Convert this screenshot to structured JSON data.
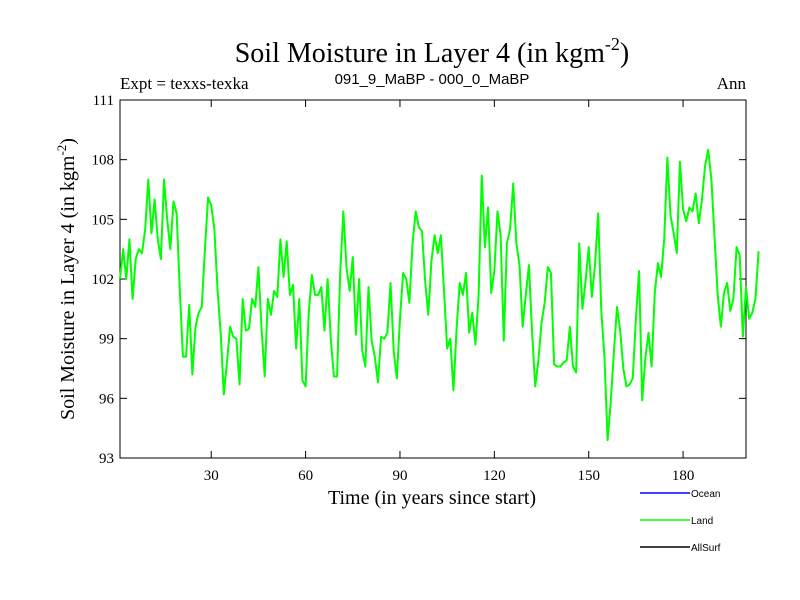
{
  "chart_data": {
    "type": "line",
    "title": "Soil Moisture in Layer 4 (in kgm",
    "title_superscript": "-2",
    "title_close": ")",
    "subtitle_left": "Expt = texxs-texka",
    "subtitle_center": "091_9_MaBP - 000_0_MaBP",
    "subtitle_right": "Ann",
    "xlabel": "Time (in years since start)",
    "ylabel": "Soil Moisture in Layer 4 (in kgm",
    "ylabel_superscript": "-2",
    "ylabel_close": ")",
    "xlim": [
      1,
      200
    ],
    "ylim": [
      93,
      111
    ],
    "xticks": [
      30,
      60,
      90,
      120,
      150,
      180
    ],
    "xtick_labels": [
      "30",
      "60",
      "90",
      "120",
      "150",
      "180"
    ],
    "yticks": [
      93,
      96,
      99,
      102,
      105,
      108,
      111
    ],
    "ytick_labels": [
      "93",
      "96",
      "99",
      "102",
      "105",
      "108",
      "111"
    ],
    "legend": [
      {
        "name": "Ocean",
        "color": "#0000ff"
      },
      {
        "name": "Land",
        "color": "#00ff00"
      },
      {
        "name": "AllSurf",
        "color": "#000000"
      }
    ],
    "series": [
      {
        "name": "Land",
        "color": "#00ff00",
        "x_start": 1,
        "values": [
          102.0,
          103.5,
          102.0,
          104.0,
          101.0,
          103.0,
          103.5,
          103.3,
          104.5,
          107.0,
          104.3,
          106.0,
          104.0,
          103.0,
          107.0,
          105.0,
          103.5,
          105.9,
          105.3,
          101.5,
          98.1,
          98.1,
          100.7,
          97.2,
          99.6,
          100.3,
          100.6,
          103.5,
          106.1,
          105.7,
          104.5,
          101.5,
          99.3,
          96.2,
          97.8,
          99.6,
          99.1,
          99.0,
          96.7,
          101.0,
          99.4,
          99.5,
          101.0,
          100.6,
          102.6,
          99.5,
          97.1,
          101.0,
          100.2,
          101.4,
          101.1,
          104.0,
          102.1,
          103.9,
          101.2,
          101.7,
          98.5,
          101.0,
          96.9,
          96.6,
          100.3,
          102.2,
          101.2,
          101.2,
          101.6,
          99.4,
          102.0,
          99.0,
          97.1,
          97.1,
          102.3,
          105.4,
          102.6,
          101.4,
          103.1,
          99.2,
          102.0,
          98.4,
          97.6,
          101.6,
          98.9,
          98.1,
          96.8,
          99.1,
          99.0,
          99.3,
          101.8,
          98.4,
          97.0,
          100.0,
          102.3,
          102.0,
          100.8,
          103.8,
          105.4,
          104.6,
          104.4,
          101.9,
          100.2,
          102.9,
          104.2,
          103.3,
          104.2,
          101.4,
          98.5,
          99.0,
          96.4,
          99.5,
          101.8,
          101.2,
          102.3,
          99.3,
          100.3,
          98.7,
          101.2,
          107.2,
          103.6,
          105.6,
          101.3,
          102.4,
          105.4,
          104.2,
          98.9,
          103.8,
          104.5,
          106.8,
          103.8,
          102.7,
          99.6,
          101.2,
          102.7,
          99.3,
          96.6,
          97.9,
          99.8,
          100.8,
          102.6,
          102.3,
          97.7,
          97.6,
          97.6,
          97.8,
          97.9,
          99.6,
          97.6,
          97.3,
          103.8,
          100.5,
          101.9,
          103.6,
          101.1,
          102.7,
          105.3,
          100.4,
          98.1,
          93.9,
          95.8,
          98.3,
          100.6,
          99.4,
          97.5,
          96.6,
          96.7,
          97.0,
          100.0,
          102.4,
          95.9,
          98.0,
          99.3,
          97.6,
          101.3,
          102.8,
          102.1,
          104.0,
          108.1,
          105.2,
          104.3,
          103.3,
          107.9,
          105.5,
          104.9,
          105.6,
          105.4,
          106.3,
          104.8,
          106.0,
          107.7,
          108.5,
          107.0,
          104.1,
          101.2,
          99.6,
          101.3,
          101.8,
          100.4,
          101.0,
          103.6,
          103.2,
          99.1,
          101.6,
          100.0,
          100.3,
          101.0,
          103.4
        ]
      }
    ]
  }
}
